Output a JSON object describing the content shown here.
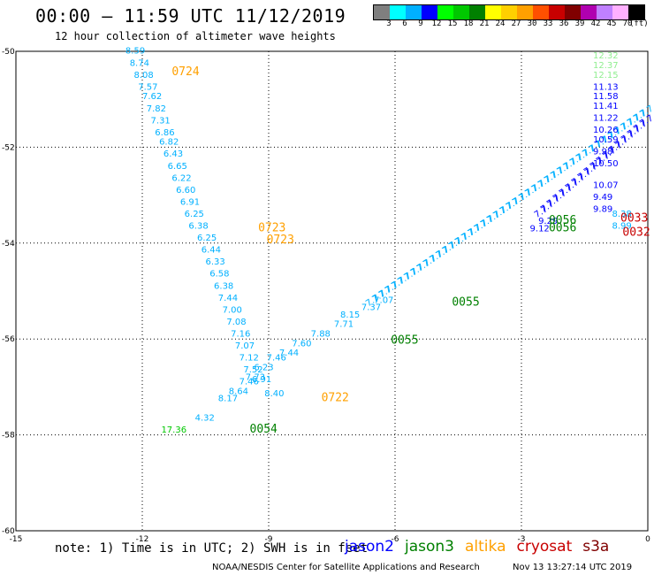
{
  "title": "00:00 – 11:59 UTC 11/12/2019",
  "subtitle": "12 hour collection of altimeter wave heights",
  "colorbar": {
    "colors": [
      "#7f7f7f",
      "#00ffff",
      "#00b0ff",
      "#0000ff",
      "#00ff00",
      "#00c800",
      "#008000",
      "#ffff00",
      "#ffd000",
      "#ffa000",
      "#ff5000",
      "#c80000",
      "#800000",
      "#b000b0",
      "#c080ff",
      "#ffb0ff",
      "#000000"
    ],
    "labels": [
      "3",
      "6",
      "9",
      "12",
      "15",
      "18",
      "21",
      "24",
      "27",
      "30",
      "33",
      "36",
      "39",
      "42",
      "45",
      "70"
    ],
    "units": "(ft)"
  },
  "map": {
    "lon_range": [
      -15,
      0
    ],
    "lat_range": [
      -60,
      -50
    ],
    "lon_ticks": [
      "-15",
      "-12",
      "-9",
      "-6",
      "-3",
      "0"
    ],
    "lat_ticks": [
      "-50",
      "-52",
      "-54",
      "-56",
      "-58",
      "-60"
    ],
    "grid_style": "dotted"
  },
  "observations": [
    {
      "lon": -12.4,
      "lat": -50.05,
      "v": "8.59",
      "c": "#00b0ff"
    },
    {
      "lon": -12.3,
      "lat": -50.3,
      "v": "8.74",
      "c": "#00b0ff"
    },
    {
      "lon": -12.2,
      "lat": -50.55,
      "v": "8.08",
      "c": "#00b0ff"
    },
    {
      "lon": -12.1,
      "lat": -50.8,
      "v": "7.57",
      "c": "#00b0ff"
    },
    {
      "lon": -12.0,
      "lat": -51.0,
      "v": "7.62",
      "c": "#00b0ff"
    },
    {
      "lon": -11.9,
      "lat": -51.25,
      "v": "7.82",
      "c": "#00b0ff"
    },
    {
      "lon": -11.8,
      "lat": -51.5,
      "v": "7.31",
      "c": "#00b0ff"
    },
    {
      "lon": -11.7,
      "lat": -51.75,
      "v": "6.86",
      "c": "#00b0ff"
    },
    {
      "lon": -11.6,
      "lat": -51.95,
      "v": "6.82",
      "c": "#00b0ff"
    },
    {
      "lon": -11.5,
      "lat": -52.2,
      "v": "6.43",
      "c": "#00b0ff"
    },
    {
      "lon": -11.4,
      "lat": -52.45,
      "v": "6.65",
      "c": "#00b0ff"
    },
    {
      "lon": -11.3,
      "lat": -52.7,
      "v": "6.22",
      "c": "#00b0ff"
    },
    {
      "lon": -11.2,
      "lat": -52.95,
      "v": "6.60",
      "c": "#00b0ff"
    },
    {
      "lon": -11.1,
      "lat": -53.2,
      "v": "6.91",
      "c": "#00b0ff"
    },
    {
      "lon": -11.0,
      "lat": -53.45,
      "v": "6.25",
      "c": "#00b0ff"
    },
    {
      "lon": -10.9,
      "lat": -53.7,
      "v": "6.38",
      "c": "#00b0ff"
    },
    {
      "lon": -10.7,
      "lat": -53.95,
      "v": "6.25",
      "c": "#00b0ff"
    },
    {
      "lon": -10.6,
      "lat": -54.2,
      "v": "6.44",
      "c": "#00b0ff"
    },
    {
      "lon": -10.5,
      "lat": -54.45,
      "v": "6.33",
      "c": "#00b0ff"
    },
    {
      "lon": -10.4,
      "lat": -54.7,
      "v": "6.58",
      "c": "#00b0ff"
    },
    {
      "lon": -10.3,
      "lat": -54.95,
      "v": "6.38",
      "c": "#00b0ff"
    },
    {
      "lon": -10.2,
      "lat": -55.2,
      "v": "7.44",
      "c": "#00b0ff"
    },
    {
      "lon": -10.1,
      "lat": -55.45,
      "v": "7.00",
      "c": "#00b0ff"
    },
    {
      "lon": -10.0,
      "lat": -55.7,
      "v": "7.08",
      "c": "#00b0ff"
    },
    {
      "lon": -9.9,
      "lat": -55.95,
      "v": "7.16",
      "c": "#00b0ff"
    },
    {
      "lon": -9.8,
      "lat": -56.2,
      "v": "7.07",
      "c": "#00b0ff"
    },
    {
      "lon": -9.7,
      "lat": -56.45,
      "v": "7.12",
      "c": "#00b0ff"
    },
    {
      "lon": -9.6,
      "lat": -56.7,
      "v": "7.52",
      "c": "#00b0ff"
    },
    {
      "lon": -9.55,
      "lat": -56.85,
      "v": "7.73",
      "c": "#00b0ff"
    },
    {
      "lon": -9.7,
      "lat": -56.95,
      "v": "7.46",
      "c": "#00b0ff"
    },
    {
      "lon": -9.95,
      "lat": -57.15,
      "v": "8.64",
      "c": "#00b0ff"
    },
    {
      "lon": -10.2,
      "lat": -57.3,
      "v": "8.17",
      "c": "#00b0ff"
    },
    {
      "lon": -10.75,
      "lat": -57.7,
      "v": "4.32",
      "c": "#00b0ff"
    },
    {
      "lon": -11.55,
      "lat": -57.95,
      "v": "17.36",
      "c": "#00c800"
    },
    {
      "lon": -9.4,
      "lat": -56.9,
      "v": "6.91",
      "c": "#00b0ff"
    },
    {
      "lon": -9.35,
      "lat": -56.65,
      "v": "6.23",
      "c": "#00b0ff"
    },
    {
      "lon": -9.05,
      "lat": -56.45,
      "v": "7.46",
      "c": "#00b0ff"
    },
    {
      "lon": -8.75,
      "lat": -56.35,
      "v": "7.44",
      "c": "#00b0ff"
    },
    {
      "lon": -8.45,
      "lat": -56.15,
      "v": "7.60",
      "c": "#00b0ff"
    },
    {
      "lon": -8.0,
      "lat": -55.95,
      "v": "7.88",
      "c": "#00b0ff"
    },
    {
      "lon": -7.45,
      "lat": -55.75,
      "v": "7.71",
      "c": "#00b0ff"
    },
    {
      "lon": -7.3,
      "lat": -55.55,
      "v": "8.15",
      "c": "#00b0ff"
    },
    {
      "lon": -6.8,
      "lat": -55.4,
      "v": "7.37",
      "c": "#00b0ff"
    },
    {
      "lon": -6.5,
      "lat": -55.25,
      "v": "7.07",
      "c": "#00b0ff"
    },
    {
      "lon": -9.1,
      "lat": -57.2,
      "v": "8.40",
      "c": "#00b0ff"
    },
    {
      "lon": -0.85,
      "lat": -53.45,
      "v": "8.38",
      "c": "#00b0ff"
    },
    {
      "lon": -0.85,
      "lat": -53.7,
      "v": "8.99",
      "c": "#00b0ff"
    },
    {
      "lon": -1.3,
      "lat": -50.15,
      "v": "12.32",
      "c": "#90ee90"
    },
    {
      "lon": -1.3,
      "lat": -50.35,
      "v": "12.37",
      "c": "#90ee90"
    },
    {
      "lon": -1.3,
      "lat": -50.55,
      "v": "12.15",
      "c": "#90ee90"
    },
    {
      "lon": -1.3,
      "lat": -50.8,
      "v": "11.13",
      "c": "#0000ff"
    },
    {
      "lon": -1.3,
      "lat": -51.0,
      "v": "11.58",
      "c": "#0000ff"
    },
    {
      "lon": -1.3,
      "lat": -51.2,
      "v": "11.41",
      "c": "#0000ff"
    },
    {
      "lon": -1.3,
      "lat": -51.45,
      "v": "11.22",
      "c": "#0000ff"
    },
    {
      "lon": -1.3,
      "lat": -51.7,
      "v": "10.26",
      "c": "#0000ff"
    },
    {
      "lon": -1.3,
      "lat": -51.9,
      "v": "10.59",
      "c": "#0000ff"
    },
    {
      "lon": -1.3,
      "lat": -52.15,
      "v": "9.98",
      "c": "#0000ff"
    },
    {
      "lon": -1.3,
      "lat": -52.4,
      "v": "10.50",
      "c": "#0000ff"
    },
    {
      "lon": -1.3,
      "lat": -52.85,
      "v": "10.07",
      "c": "#0000ff"
    },
    {
      "lon": -1.3,
      "lat": -53.1,
      "v": "9.49",
      "c": "#0000ff"
    },
    {
      "lon": -1.3,
      "lat": -53.35,
      "v": "9.89",
      "c": "#0000ff"
    },
    {
      "lon": -2.6,
      "lat": -53.6,
      "v": "9.29",
      "c": "#0000ff"
    },
    {
      "lon": -2.8,
      "lat": -53.75,
      "v": "9.12",
      "c": "#0000ff"
    }
  ],
  "tracks": [
    {
      "from": [
        -6.5,
        -55.25
      ],
      "to": [
        0,
        -51.3
      ],
      "c": "#00b0ff",
      "n": 44
    },
    {
      "from": [
        -2.5,
        -53.4
      ],
      "to": [
        0,
        -51.5
      ],
      "c": "#0000ff",
      "n": 18
    }
  ],
  "time_labels": [
    {
      "lon": -11.3,
      "lat": -50.5,
      "t": "0724",
      "c": "#ffa000"
    },
    {
      "lon": -9.25,
      "lat": -53.75,
      "t": "0723",
      "c": "#ffa000"
    },
    {
      "lon": -9.05,
      "lat": -54.0,
      "t": "0723",
      "c": "#ffa000"
    },
    {
      "lon": -7.75,
      "lat": -57.3,
      "t": "0722",
      "c": "#ffa000"
    },
    {
      "lon": -9.45,
      "lat": -57.95,
      "t": "0054",
      "c": "#008000"
    },
    {
      "lon": -6.1,
      "lat": -56.1,
      "t": "0055",
      "c": "#008000"
    },
    {
      "lon": -4.65,
      "lat": -55.3,
      "t": "0055",
      "c": "#008000"
    },
    {
      "lon": -2.35,
      "lat": -53.75,
      "t": "0056",
      "c": "#008000"
    },
    {
      "lon": -2.35,
      "lat": -53.6,
      "t": "0056",
      "c": "#008000"
    },
    {
      "lon": -0.65,
      "lat": -53.55,
      "t": "0033",
      "c": "#c80000"
    },
    {
      "lon": -0.6,
      "lat": -53.85,
      "t": "0032",
      "c": "#c80000"
    }
  ],
  "note": "note: 1) Time is in UTC; 2) SWH is in feet",
  "legend": [
    {
      "name": "jason2",
      "color": "#0000ff"
    },
    {
      "name": "jason3",
      "color": "#008000"
    },
    {
      "name": "altika",
      "color": "#ffa000"
    },
    {
      "name": "cryosat",
      "color": "#c80000"
    },
    {
      "name": "s3a",
      "color": "#800000"
    }
  ],
  "credit": "NOAA/NESDIS Center for Satellite Applications and Research",
  "timestamp": "Nov 13 13:27:14 UTC 2019"
}
